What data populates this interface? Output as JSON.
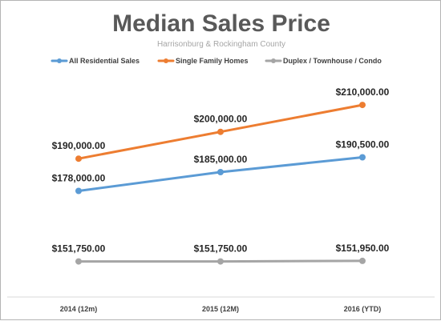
{
  "chart_data": {
    "type": "line",
    "title": "Median Sales Price",
    "subtitle": "Harrisonburg & Rockingham County",
    "categories": [
      "2014 (12m)",
      "2015 (12M)",
      "2016 (YTD)"
    ],
    "ylim": [
      140000,
      230000
    ],
    "grid": false,
    "legend_position": "top",
    "series": [
      {
        "name": "All Residential Sales",
        "color": "#5b9bd5",
        "values": [
          178000,
          185000,
          190500
        ],
        "labels": [
          "$178,000.00",
          "$185,000.00",
          "$190,500.00"
        ],
        "label_position": "above"
      },
      {
        "name": "Single Family Homes",
        "color": "#ed7d31",
        "values": [
          190000,
          200000,
          210000
        ],
        "labels": [
          "$190,000.00",
          "$200,000.00",
          "$210,000.00"
        ],
        "label_position": "above"
      },
      {
        "name": "Duplex / Townhouse / Condo",
        "color": "#a5a5a5",
        "values": [
          151750,
          151750,
          151950
        ],
        "labels": [
          "$151,750.00",
          "$151,750.00",
          "$151,950.00"
        ],
        "label_position": "above"
      }
    ]
  }
}
